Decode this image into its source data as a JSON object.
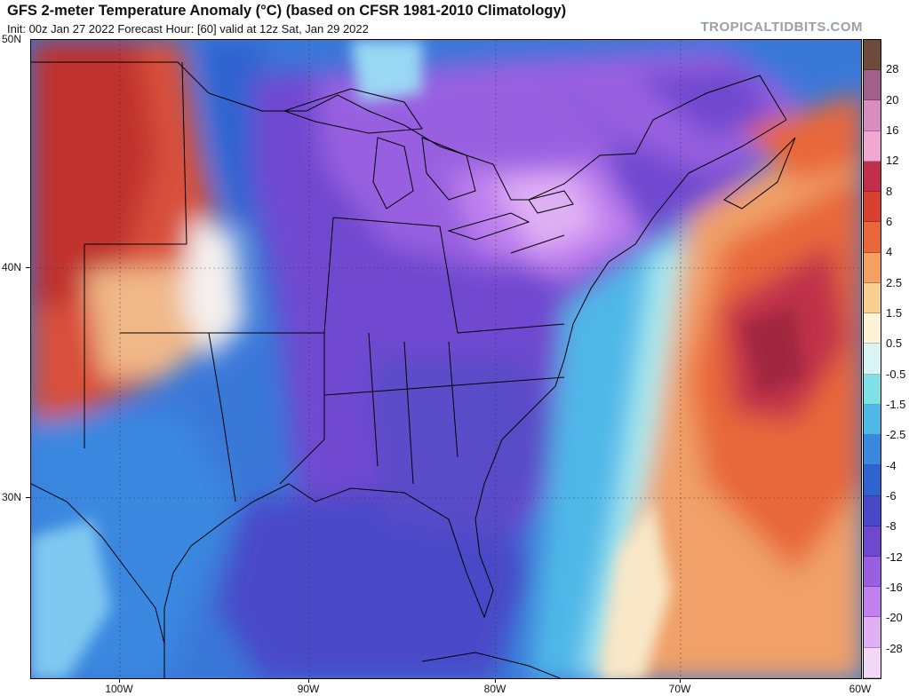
{
  "header": {
    "title": "GFS 2-meter Temperature Anomaly (°C) (based on CFSR 1981-2010 Climatology)",
    "subtitle": "Init: 00z Jan 27 2022   Forecast Hour: [60]   valid at 12z Sat, Jan 29 2022",
    "brand": "TROPICALTIDBITS.COM"
  },
  "axes": {
    "lat_labels": [
      "50N",
      "40N",
      "30N"
    ],
    "lon_labels": [
      "100W",
      "90W",
      "80W",
      "70W",
      "60W"
    ]
  },
  "colorbar": {
    "labels": [
      "28",
      "20",
      "16",
      "12",
      "8",
      "6",
      "4",
      "2.5",
      "1.5",
      "0.5",
      "-0.5",
      "-1.5",
      "-2.5",
      "-4",
      "-6",
      "-8",
      "-12",
      "-16",
      "-20",
      "-28"
    ],
    "colors": [
      "#6e4a3a",
      "#a0608a",
      "#d98cc0",
      "#f0a8d0",
      "#c0304a",
      "#d84030",
      "#e8683a",
      "#f4a060",
      "#f8d090",
      "#fdf4d8",
      "#d8f4f4",
      "#80e0e8",
      "#50b8e8",
      "#3a88e0",
      "#2e64d0",
      "#4848c8",
      "#7048d0",
      "#9860e0",
      "#c080ee",
      "#e0b0f4",
      "#f4d8f8"
    ]
  }
}
